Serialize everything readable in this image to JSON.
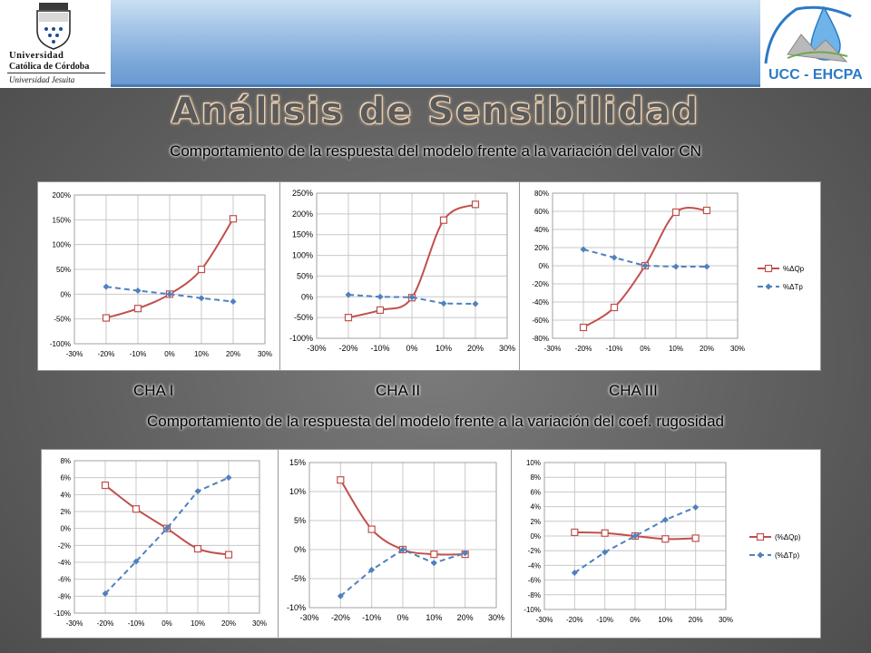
{
  "header": {
    "logo_left": {
      "line1": "Universidad",
      "line2": "Católica de Córdoba",
      "line3": "Universidad Jesuita"
    },
    "logo_right": {
      "text": "UCC - EHCPA"
    }
  },
  "title": "Análisis de Sensibilidad",
  "section1_subtitle": "Comportamiento de la respuesta del modelo frente a la variación del valor CN",
  "section2_subtitle": "Comportamiento de la respuesta del modelo frente a la variación del coef. rugosidad",
  "chart_labels": [
    "CHA I",
    "CHA II",
    "CHA III"
  ],
  "colors": {
    "op": "#c0504d",
    "tp": "#4f81bd"
  },
  "chart_data": [
    {
      "type": "line",
      "group": "CN",
      "panel": "CHA I",
      "x": [
        -20,
        -10,
        0,
        10,
        20
      ],
      "xticks": [
        "-30%",
        "-20%",
        "-10%",
        "0%",
        "10%",
        "20%",
        "30%"
      ],
      "xlim": [
        -30,
        30
      ],
      "ylim": [
        -100,
        200
      ],
      "yticks": [
        -100,
        -50,
        0,
        50,
        100,
        150,
        200
      ],
      "ytick_labels": [
        "-100%",
        "-50%",
        "0%",
        "50%",
        "100%",
        "150%",
        "200%"
      ],
      "series": [
        {
          "values": [
            -48,
            -29,
            0,
            50,
            152
          ],
          "style": "op"
        },
        {
          "values": [
            15,
            7,
            0,
            -8,
            -15
          ],
          "style": "tp"
        }
      ]
    },
    {
      "type": "line",
      "group": "CN",
      "panel": "CHA II",
      "x": [
        -20,
        -10,
        0,
        10,
        20
      ],
      "xticks": [
        "-30%",
        "-20%",
        "-10%",
        "0%",
        "10%",
        "20%",
        "30%"
      ],
      "xlim": [
        -30,
        30
      ],
      "ylim": [
        -100,
        250
      ],
      "yticks": [
        -100,
        -50,
        0,
        50,
        100,
        150,
        200,
        250
      ],
      "ytick_labels": [
        "-100%",
        "-50%",
        "0%",
        "50%",
        "100%",
        "150%",
        "200%",
        "250%"
      ],
      "series": [
        {
          "values": [
            -50,
            -32,
            -2,
            185,
            223
          ],
          "style": "op"
        },
        {
          "values": [
            5,
            0,
            -1,
            -16,
            -17
          ],
          "style": "tp"
        }
      ]
    },
    {
      "type": "line",
      "group": "CN",
      "panel": "CHA III",
      "x": [
        -20,
        -10,
        0,
        10,
        20
      ],
      "xticks": [
        "-30%",
        "-20%",
        "-10%",
        "0%",
        "10%",
        "20%",
        "30%"
      ],
      "xlim": [
        -30,
        30
      ],
      "ylim": [
        -80,
        80
      ],
      "yticks": [
        -80,
        -60,
        -40,
        -20,
        0,
        20,
        40,
        60,
        80
      ],
      "ytick_labels": [
        "-80%",
        "-60%",
        "-40%",
        "-20%",
        "0%",
        "20%",
        "40%",
        "60%",
        "80%"
      ],
      "legend": [
        "%ΔQp",
        "%ΔTp"
      ],
      "series": [
        {
          "name": "%ΔQp",
          "values": [
            -68,
            -46,
            0,
            59,
            61
          ],
          "style": "op"
        },
        {
          "name": "%ΔTp",
          "values": [
            18,
            9,
            0,
            -1,
            -1
          ],
          "style": "tp"
        }
      ]
    },
    {
      "type": "line",
      "group": "rugosidad",
      "panel": "CHA I",
      "x": [
        -20,
        -10,
        0,
        10,
        20
      ],
      "xticks": [
        "-30%",
        "-20%",
        "-10%",
        "0%",
        "10%",
        "20%",
        "30%"
      ],
      "xlim": [
        -30,
        30
      ],
      "ylim": [
        -10,
        8
      ],
      "yticks": [
        -10,
        -8,
        -6,
        -4,
        -2,
        0,
        2,
        4,
        6,
        8
      ],
      "ytick_labels": [
        "-10%",
        "-8%",
        "-6%",
        "-4%",
        "-2%",
        "0%",
        "2%",
        "4%",
        "6%",
        "8%"
      ],
      "series": [
        {
          "values": [
            5.1,
            2.3,
            0,
            -2.4,
            -3.1
          ],
          "style": "op"
        },
        {
          "values": [
            -7.7,
            -3.9,
            0,
            4.4,
            6.0
          ],
          "style": "tp"
        }
      ]
    },
    {
      "type": "line",
      "group": "rugosidad",
      "panel": "CHA II",
      "x": [
        -20,
        -10,
        0,
        10,
        20
      ],
      "xticks": [
        "-30%",
        "-20%",
        "-10%",
        "0%",
        "10%",
        "20%",
        "30%"
      ],
      "xlim": [
        -30,
        30
      ],
      "ylim": [
        -10,
        15
      ],
      "yticks": [
        -10,
        -5,
        0,
        5,
        10,
        15
      ],
      "ytick_labels": [
        "-10%",
        "-5%",
        "0%",
        "5%",
        "10%",
        "15%"
      ],
      "series": [
        {
          "values": [
            12.0,
            3.5,
            0,
            -0.8,
            -0.8
          ],
          "style": "op"
        },
        {
          "values": [
            -8.0,
            -3.5,
            0,
            -2.3,
            -0.6
          ],
          "style": "tp"
        }
      ]
    },
    {
      "type": "line",
      "group": "rugosidad",
      "panel": "CHA III",
      "x": [
        -20,
        -10,
        0,
        10,
        20
      ],
      "xticks": [
        "-30%",
        "-20%",
        "-10%",
        "0%",
        "10%",
        "20%",
        "30%"
      ],
      "xlim": [
        -30,
        30
      ],
      "ylim": [
        -10,
        10
      ],
      "yticks": [
        -10,
        -8,
        -6,
        -4,
        -2,
        0,
        2,
        4,
        6,
        8,
        10
      ],
      "ytick_labels": [
        "-10%",
        "-8%",
        "-6%",
        "-4%",
        "-2%",
        "0%",
        "2%",
        "4%",
        "6%",
        "8%",
        "10%"
      ],
      "legend": [
        "(%ΔQp)",
        "(%ΔTp)"
      ],
      "series": [
        {
          "name": "(%ΔQp)",
          "values": [
            0.5,
            0.4,
            0,
            -0.4,
            -0.3
          ],
          "style": "op"
        },
        {
          "name": "(%ΔTp)",
          "values": [
            -5.0,
            -2.2,
            0,
            2.2,
            3.9
          ],
          "style": "tp"
        }
      ]
    }
  ]
}
